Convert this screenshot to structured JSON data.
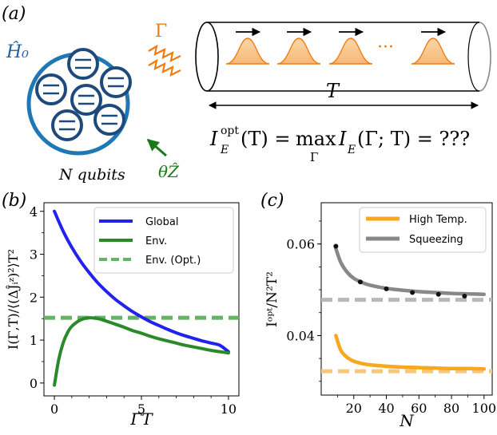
{
  "panel_a": {
    "label": "(a)",
    "hamiltonian": "Ĥ₀",
    "gamma_symbol": "Γ",
    "qubits_label": "N qubits",
    "noise_label": "θẐ",
    "time_label": "T",
    "ellipsis": "···",
    "formula": {
      "lhs_base": "I",
      "lhs_sub": "E",
      "lhs_sup": "opt",
      "lhs_arg": "(T) =",
      "max": "max",
      "max_sub": "Γ",
      "rhs_base": "I",
      "rhs_sub": "E",
      "rhs_arg": "(Γ; T) = ???"
    }
  },
  "chart_data": [
    {
      "type": "line",
      "panel": "(b)",
      "xlabel": "ΓT",
      "ylabel": "I(Γ,T)/⟨(ΔĴᵢᶻ)²⟩T²",
      "xlim": [
        -0.6,
        10.6
      ],
      "ylim": [
        -0.3,
        4.2
      ],
      "xticks": [
        0,
        5,
        10
      ],
      "xtick_labels": [
        "0",
        "5",
        "10"
      ],
      "yticks": [
        0,
        1,
        2,
        3,
        4
      ],
      "ytick_labels": [
        "0",
        "1",
        "2",
        "3",
        "4"
      ],
      "series": [
        {
          "name": "Global",
          "color": "#2222ee",
          "style": "solid",
          "x": [
            0,
            0.5,
            1,
            1.5,
            2,
            2.5,
            3,
            3.5,
            4,
            4.5,
            5,
            5.5,
            6,
            6.5,
            7,
            7.5,
            8,
            8.5,
            9,
            9.5,
            10
          ],
          "y": [
            4.0,
            3.54,
            3.16,
            2.84,
            2.57,
            2.33,
            2.13,
            1.95,
            1.8,
            1.66,
            1.54,
            1.43,
            1.34,
            1.25,
            1.17,
            1.1,
            1.04,
            0.98,
            0.93,
            0.88,
            0.73
          ]
        },
        {
          "name": "Env.",
          "color": "#2a8a2a",
          "style": "solid",
          "x": [
            0,
            0.25,
            0.5,
            0.75,
            1,
            1.5,
            2,
            2.5,
            3,
            3.5,
            4,
            4.5,
            5,
            5.5,
            6,
            6.5,
            7,
            7.5,
            8,
            8.5,
            9,
            9.5,
            10
          ],
          "y": [
            -0.05,
            0.55,
            0.93,
            1.17,
            1.32,
            1.47,
            1.52,
            1.5,
            1.44,
            1.37,
            1.3,
            1.22,
            1.16,
            1.09,
            1.03,
            0.98,
            0.93,
            0.88,
            0.84,
            0.8,
            0.76,
            0.73,
            0.7
          ]
        },
        {
          "name": "Env. (Opt.)",
          "color": "#66b266",
          "style": "dashed",
          "x": [
            -0.6,
            10.6
          ],
          "y": [
            1.52,
            1.52
          ]
        }
      ]
    },
    {
      "type": "line",
      "panel": "(c)",
      "xlabel": "N",
      "ylabel": "Iᵒᵖᵗ/N²T²",
      "xlim": [
        0,
        105
      ],
      "ylim": [
        0.027,
        0.069
      ],
      "xticks": [
        20,
        40,
        60,
        80,
        100
      ],
      "xtick_labels": [
        "20",
        "40",
        "60",
        "80",
        "100"
      ],
      "yticks": [
        0.04,
        0.06
      ],
      "ytick_labels": [
        "0.04",
        "0.06"
      ],
      "series": [
        {
          "name": "High Temp.",
          "color": "#f8a820",
          "style": "solid",
          "x": [
            9,
            12,
            16,
            20,
            25,
            30,
            40,
            50,
            60,
            70,
            80,
            90,
            100
          ],
          "y": [
            0.04,
            0.0368,
            0.0352,
            0.0344,
            0.0339,
            0.0336,
            0.0333,
            0.0331,
            0.033,
            0.0329,
            0.0328,
            0.0328,
            0.0327
          ]
        },
        {
          "name": "Squeezing",
          "color": "#888888",
          "style": "solid",
          "x": [
            9,
            12,
            16,
            20,
            25,
            30,
            40,
            50,
            60,
            70,
            80,
            90,
            100
          ],
          "y": [
            0.059,
            0.056,
            0.0538,
            0.0525,
            0.0516,
            0.051,
            0.0503,
            0.0499,
            0.0496,
            0.0494,
            0.0492,
            0.0491,
            0.049
          ]
        },
        {
          "name": "Squeezing points",
          "color": "#111111",
          "style": "markers",
          "x": [
            9,
            24,
            40,
            56,
            72,
            88
          ],
          "y": [
            0.0595,
            0.0517,
            0.0502,
            0.0494,
            0.049,
            0.0486
          ]
        },
        {
          "name": "High Temp. limit",
          "color": "#f8c878",
          "style": "dashed",
          "x": [
            0,
            105
          ],
          "y": [
            0.0322,
            0.0322
          ]
        },
        {
          "name": "Squeezing limit",
          "color": "#b8b8b8",
          "style": "dashed",
          "x": [
            0,
            105
          ],
          "y": [
            0.0478,
            0.0478
          ]
        }
      ]
    }
  ],
  "legend_b": [
    "Global",
    "Env.",
    "Env. (Opt.)"
  ],
  "legend_c": [
    "High Temp.",
    "Squeezing"
  ]
}
